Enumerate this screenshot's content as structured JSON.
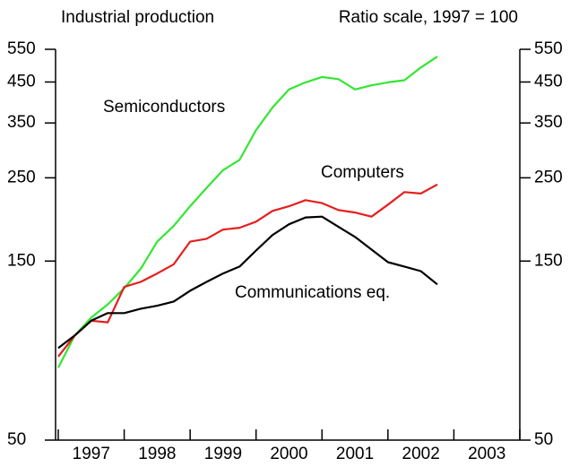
{
  "chart_data": {
    "type": "line",
    "title": "Industrial production",
    "subtitle": "Ratio scale, 1997 = 100",
    "log_scale": true,
    "grid": false,
    "categories": [
      "1997",
      "1998",
      "1999",
      "2000",
      "2001",
      "2002",
      "2003"
    ],
    "xlim": [
      1997,
      2004
    ],
    "xticks": [
      1997,
      1998,
      1999,
      2000,
      2001,
      2002,
      2003,
      2004
    ],
    "ylim": [
      50,
      550
    ],
    "yticks": [
      50,
      150,
      250,
      350,
      450,
      550
    ],
    "x": [
      1997,
      1997.25,
      1997.5,
      1997.75,
      1998,
      1998.25,
      1998.5,
      1998.75,
      1999,
      1999.25,
      1999.5,
      1999.75,
      2000,
      2000.25,
      2000.5,
      2000.75,
      2001,
      2001.25,
      2001.5,
      2001.75,
      2002,
      2002.25,
      2002.5,
      2002.75
    ],
    "series": [
      {
        "name": "Semiconductors",
        "color": "#33e633",
        "values": [
          78,
          95,
          106,
          115,
          127,
          143,
          169,
          186,
          210,
          235,
          262,
          279,
          335,
          385,
          430,
          449,
          464,
          458,
          430,
          441,
          449,
          455,
          492,
          526
        ]
      },
      {
        "name": "Computers",
        "color": "#e61e1e",
        "values": [
          83.5,
          95,
          104,
          103,
          128,
          132,
          139,
          147,
          169,
          172,
          182,
          184,
          191,
          204,
          210,
          218,
          214,
          205,
          202,
          197,
          212,
          229,
          227,
          240
        ]
      },
      {
        "name": "Communications eq.",
        "color": "#000000",
        "values": [
          88,
          95,
          104,
          109,
          109,
          112,
          114,
          117,
          125,
          132,
          139,
          145,
          160,
          176,
          188,
          196,
          197,
          185,
          174,
          161,
          149,
          145,
          141,
          130
        ]
      }
    ]
  }
}
